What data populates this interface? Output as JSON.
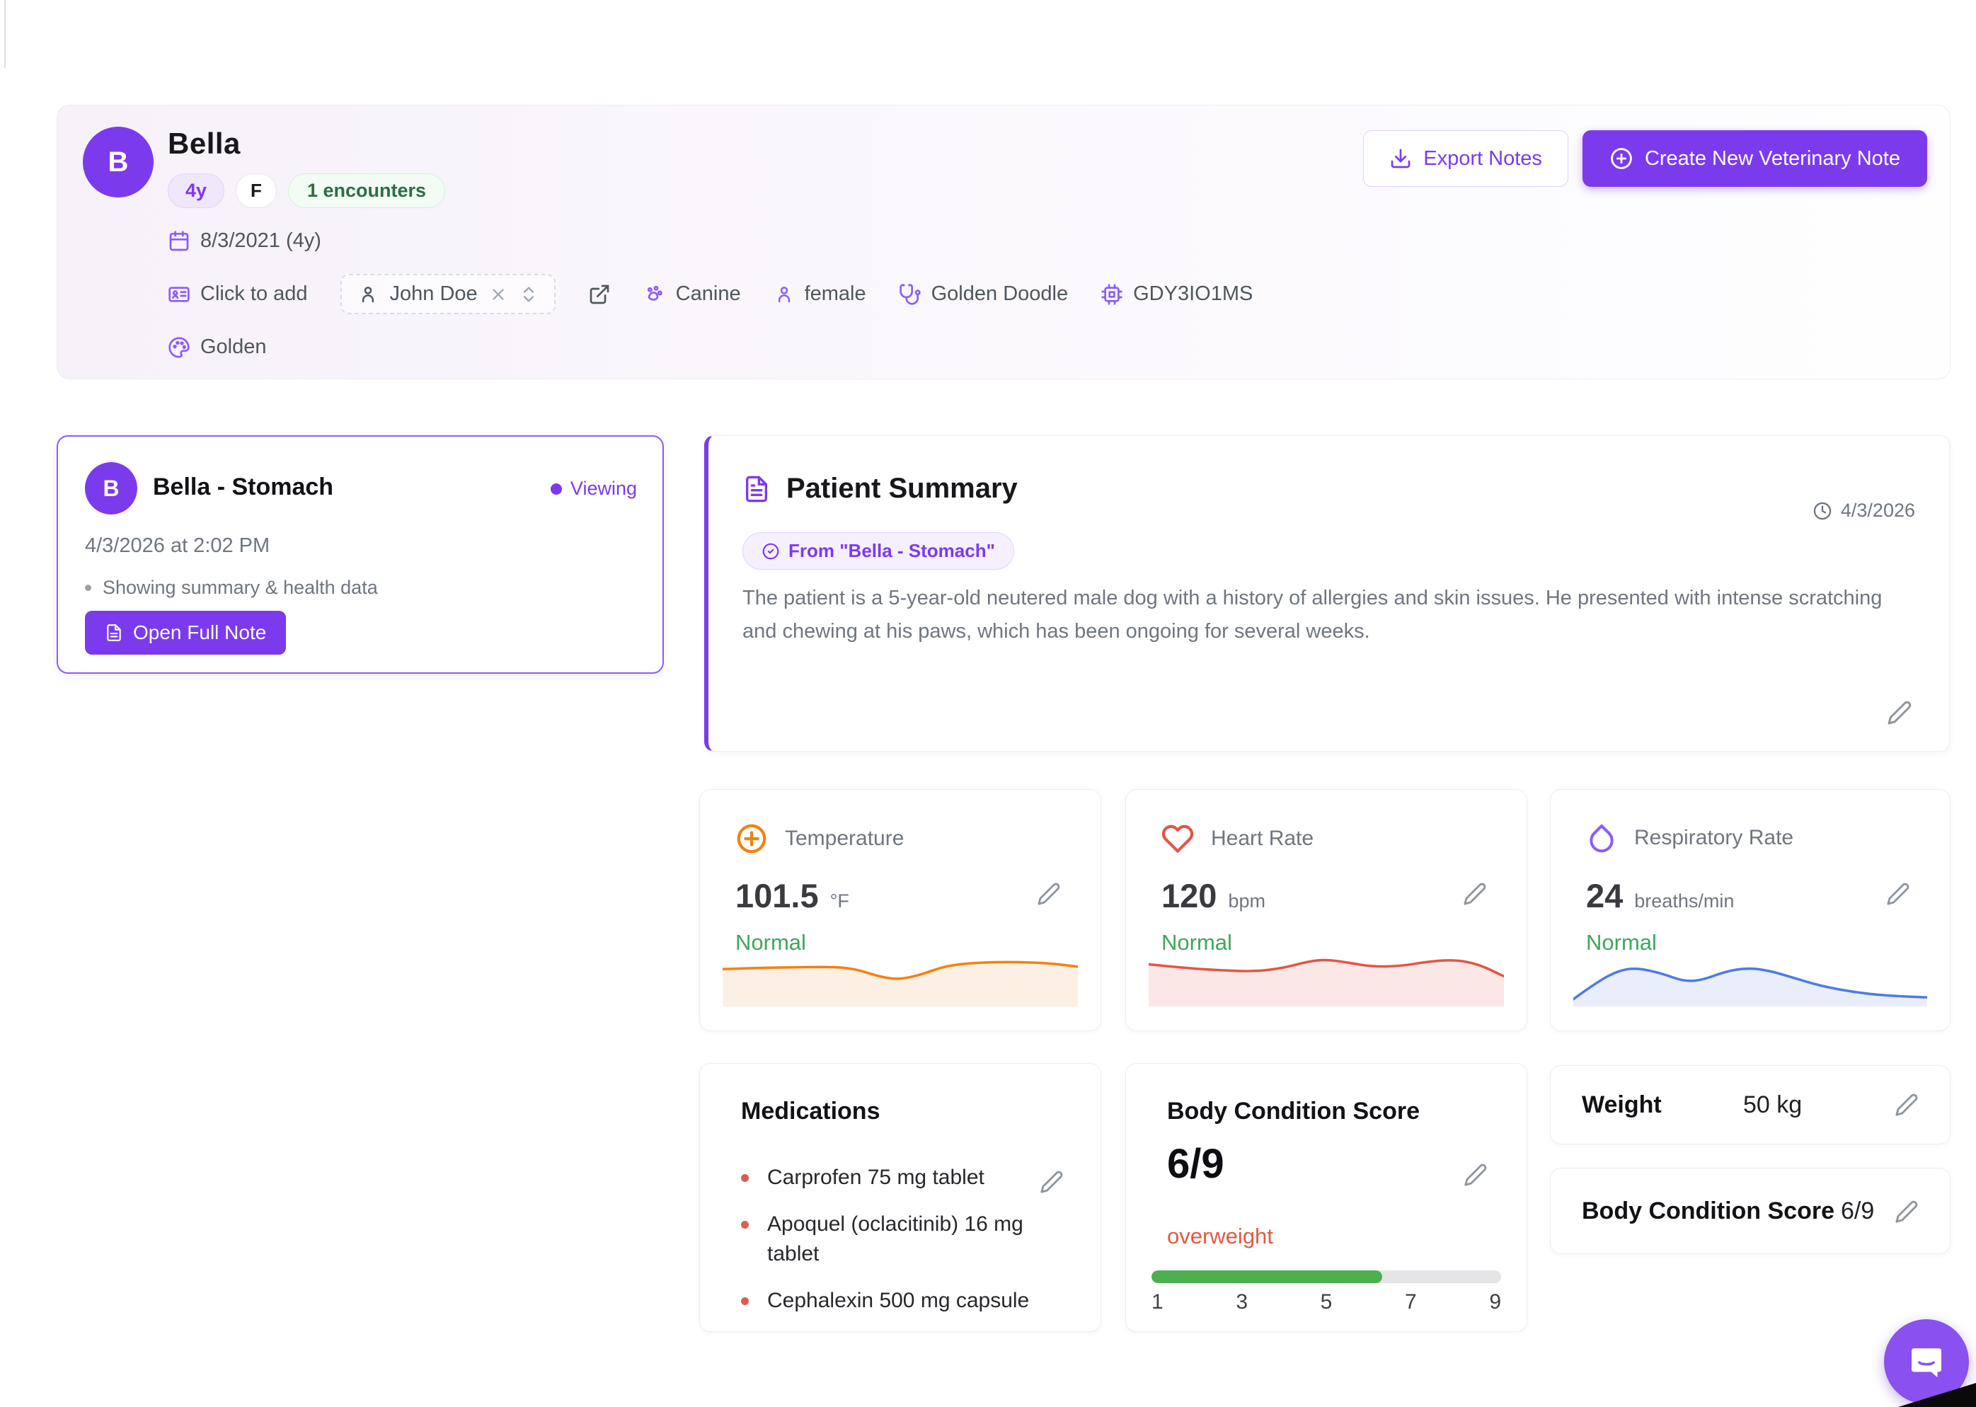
{
  "theme": {
    "accent": "#7C3AED",
    "accent-light": "#8B5CF6",
    "green": "#3FA65B",
    "green-dark": "#2B6E42",
    "coral": "#E2593F",
    "bar-green": "#4CAF50"
  },
  "header": {
    "avatar_initial": "B",
    "name": "Bella",
    "badges": {
      "age": "4y",
      "sex": "F",
      "encounters": "1 encounters"
    },
    "birth_date": "8/3/2021 (4y)",
    "click_to_add": "Click to add",
    "owner_name": "John Doe",
    "species": "Canine",
    "sex_label": "female",
    "breed": "Golden Doodle",
    "microchip": "GDY3IO1MS",
    "color": "Golden",
    "export_button": "Export Notes",
    "create_button": "Create New Veterinary Note"
  },
  "note_card": {
    "avatar_initial": "B",
    "title": "Bella - Stomach",
    "status": "Viewing",
    "datetime": "4/3/2026 at 2:02 PM",
    "bullet": "Showing summary & health data",
    "open_button": "Open Full Note"
  },
  "summary": {
    "title": "Patient Summary",
    "source_badge": "From \"Bella - Stomach\"",
    "date": "4/3/2026",
    "text": "The patient is a 5-year-old neutered male dog with a history of allergies and skin issues. He presented with intense scratching and chewing at his paws, which has been ongoing for several weeks."
  },
  "vitals": [
    {
      "label": "Temperature",
      "value": "101.5",
      "unit": "°F",
      "status": "Normal",
      "line_color": "#F2820E",
      "fill_color": "#FCEFE3",
      "sparkline": [
        [
          0,
          0.38
        ],
        [
          0.1,
          0.36
        ],
        [
          0.2,
          0.35
        ],
        [
          0.3,
          0.34
        ],
        [
          0.37,
          0.37
        ],
        [
          0.45,
          0.52
        ],
        [
          0.5,
          0.55
        ],
        [
          0.56,
          0.47
        ],
        [
          0.63,
          0.32
        ],
        [
          0.72,
          0.27
        ],
        [
          0.82,
          0.26
        ],
        [
          0.92,
          0.28
        ],
        [
          1,
          0.34
        ]
      ]
    },
    {
      "label": "Heart Rate",
      "value": "120",
      "unit": "bpm",
      "status": "Normal",
      "line_color": "#E05647",
      "fill_color": "#FBE7E5",
      "sparkline": [
        [
          0,
          0.3
        ],
        [
          0.1,
          0.36
        ],
        [
          0.2,
          0.4
        ],
        [
          0.3,
          0.42
        ],
        [
          0.38,
          0.36
        ],
        [
          0.45,
          0.25
        ],
        [
          0.5,
          0.22
        ],
        [
          0.56,
          0.27
        ],
        [
          0.63,
          0.34
        ],
        [
          0.71,
          0.33
        ],
        [
          0.78,
          0.26
        ],
        [
          0.86,
          0.22
        ],
        [
          0.93,
          0.3
        ],
        [
          1,
          0.5
        ]
      ]
    },
    {
      "label": "Respiratory Rate",
      "value": "24",
      "unit": "breaths/min",
      "status": "Normal",
      "line_color": "#4B7BE5",
      "fill_color": "#E9EEFA",
      "sparkline": [
        [
          0,
          0.88
        ],
        [
          0.07,
          0.58
        ],
        [
          0.13,
          0.4
        ],
        [
          0.18,
          0.36
        ],
        [
          0.25,
          0.45
        ],
        [
          0.31,
          0.58
        ],
        [
          0.36,
          0.57
        ],
        [
          0.43,
          0.42
        ],
        [
          0.49,
          0.36
        ],
        [
          0.55,
          0.4
        ],
        [
          0.62,
          0.52
        ],
        [
          0.7,
          0.66
        ],
        [
          0.79,
          0.76
        ],
        [
          0.88,
          0.82
        ],
        [
          1,
          0.85
        ]
      ]
    }
  ],
  "medications": {
    "title": "Medications",
    "items": [
      "Carprofen 75 mg tablet",
      "Apoquel (oclacitinib) 16 mg tablet",
      "Cephalexin 500 mg capsule"
    ]
  },
  "bcs": {
    "title": "Body Condition Score",
    "value": "6/9",
    "status": "overweight",
    "progress_percent": 66,
    "scale_labels": [
      "1",
      "3",
      "5",
      "7",
      "9"
    ]
  },
  "weight": {
    "title": "Weight",
    "value": "50 kg"
  },
  "bcs_compact": {
    "title": "Body Condition Score",
    "value": "6/9"
  }
}
